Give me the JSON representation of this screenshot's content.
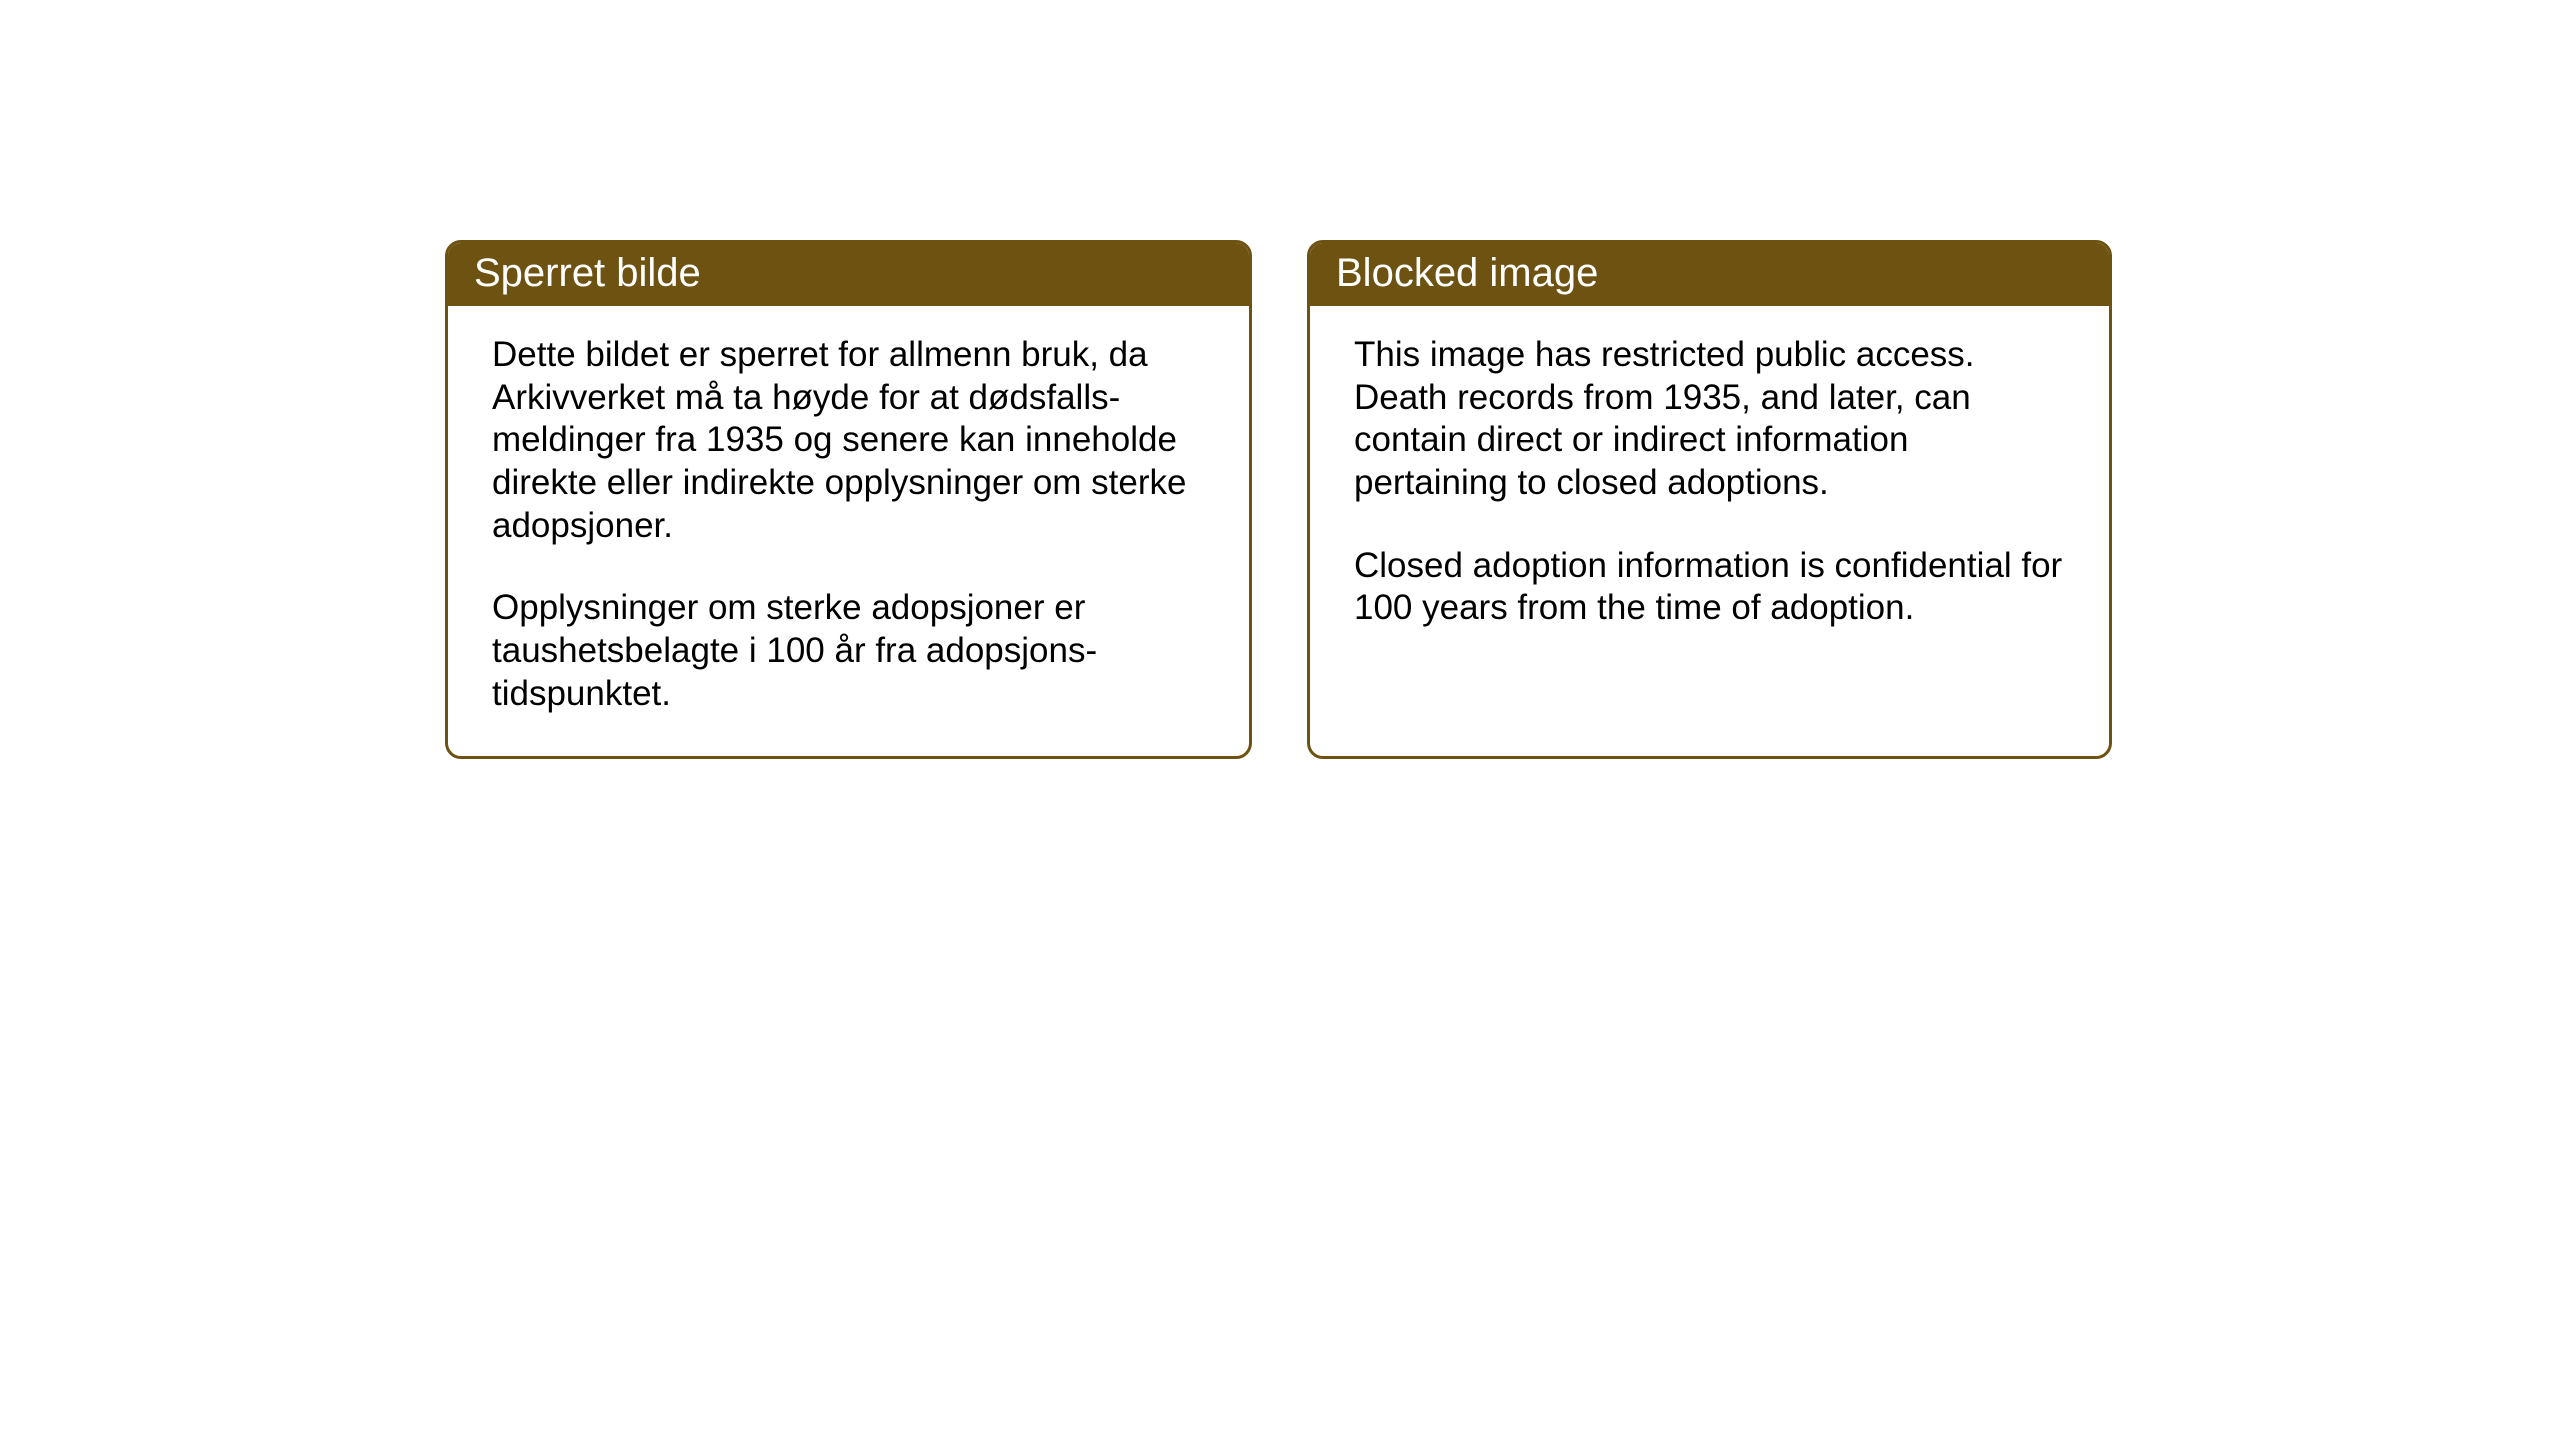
{
  "notices": {
    "left": {
      "title": "Sperret bilde",
      "paragraph1": "Dette bildet er sperret for allmenn bruk, da Arkivverket må ta høyde for at dødsfalls-meldinger fra 1935 og senere kan inneholde direkte eller indirekte opplysninger om sterke adopsjoner.",
      "paragraph2": "Opplysninger om sterke adopsjoner er taushetsbelagte i 100 år fra adopsjons-tidspunktet."
    },
    "right": {
      "title": "Blocked image",
      "paragraph1": "This image has restricted public access. Death records from 1935, and later, can contain direct or indirect information pertaining to closed adoptions.",
      "paragraph2": "Closed adoption information is confidential for 100 years from the time of adoption."
    }
  },
  "styling": {
    "header_background": "#6d5211",
    "header_text_color": "#ffffff",
    "border_color": "#6d5211",
    "body_background": "#ffffff",
    "body_text_color": "#000000",
    "border_radius": 16,
    "border_width": 3,
    "header_fontsize": 40,
    "body_fontsize": 35
  }
}
